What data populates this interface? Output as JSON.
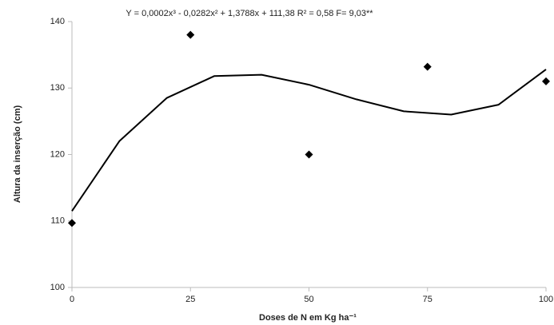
{
  "chart_data": {
    "type": "scatter",
    "annotation": "Y = 0,0002x³ - 0,0282x² + 1,3788x + 111,38 R² = 0,58 F= 9,03**",
    "xlabel": "Doses de N em Kg ha⁻¹",
    "ylabel": "Altura da inserção (cm)",
    "x": [
      0,
      25,
      50,
      75,
      100
    ],
    "values": [
      109.7,
      138,
      120,
      133.2,
      131
    ],
    "color": "#000000",
    "trend": {
      "x": [
        0,
        10,
        20,
        30,
        40,
        50,
        60,
        70,
        80,
        90,
        100
      ],
      "values": [
        111.5,
        122,
        128.5,
        131.8,
        132,
        130.5,
        128.3,
        126.5,
        126,
        127.5,
        132.8
      ]
    },
    "xlim": [
      0,
      100
    ],
    "xticks": [
      0,
      25,
      50,
      75,
      100
    ],
    "ylim": [
      100,
      140
    ],
    "yticks": [
      100,
      110,
      120,
      130,
      140
    ],
    "grid": false
  }
}
